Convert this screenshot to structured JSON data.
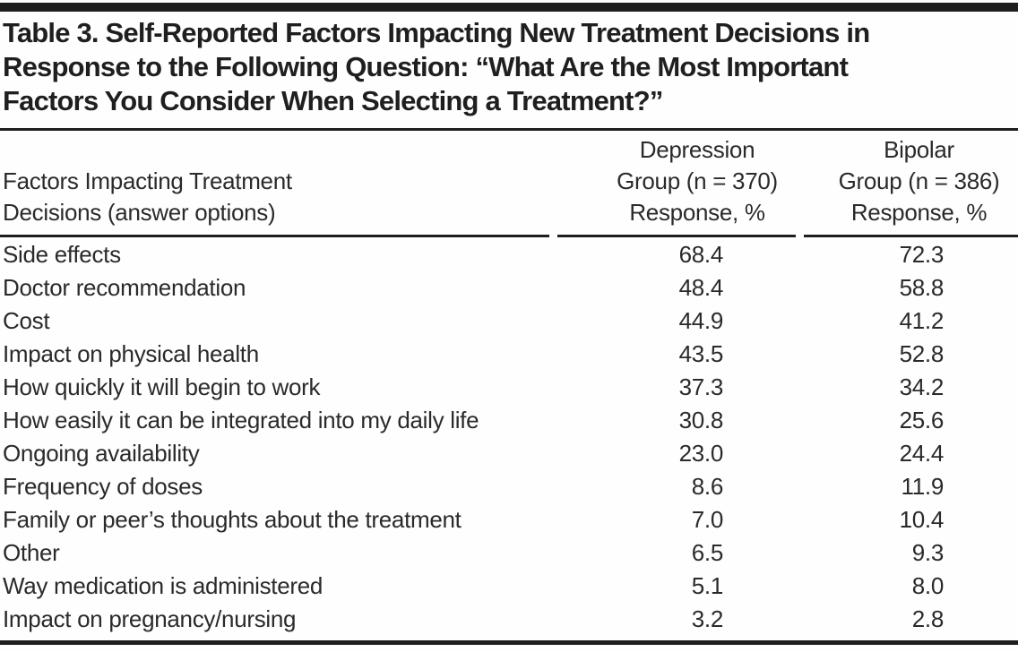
{
  "page": {
    "title_lines": [
      "Table 3. Self-Reported Factors Impacting New Treatment Decisions in",
      "Response to the Following Question: “What Are the Most Important",
      "Factors You Consider When Selecting a Treatment?”"
    ]
  },
  "table": {
    "header": {
      "factor_line1": "Factors Impacting Treatment",
      "factor_line2": "Decisions (answer options)",
      "dep_line1": "Depression",
      "dep_line2": "Group (n = 370)",
      "dep_line3": "Response, %",
      "bip_line1": "Bipolar",
      "bip_line2": "Group (n = 386)",
      "bip_line3": "Response, %"
    },
    "rows": [
      {
        "factor": "Side effects",
        "depression": "68.4",
        "bipolar": "72.3"
      },
      {
        "factor": "Doctor recommendation",
        "depression": "48.4",
        "bipolar": "58.8"
      },
      {
        "factor": "Cost",
        "depression": "44.9",
        "bipolar": "41.2"
      },
      {
        "factor": "Impact on physical health",
        "depression": "43.5",
        "bipolar": "52.8"
      },
      {
        "factor": "How quickly it will begin to work",
        "depression": "37.3",
        "bipolar": "34.2"
      },
      {
        "factor": "How easily it can be integrated into my daily life",
        "depression": "30.8",
        "bipolar": "25.6"
      },
      {
        "factor": "Ongoing availability",
        "depression": "23.0",
        "bipolar": "24.4"
      },
      {
        "factor": "Frequency of doses",
        "depression": "8.6",
        "bipolar": "11.9"
      },
      {
        "factor": "Family or peer’s thoughts about the treatment",
        "depression": "7.0",
        "bipolar": "10.4"
      },
      {
        "factor": "Other",
        "depression": "6.5",
        "bipolar": "9.3"
      },
      {
        "factor": "Way medication is administered",
        "depression": "5.1",
        "bipolar": "8.0"
      },
      {
        "factor": "Impact on pregnancy/nursing",
        "depression": "3.2",
        "bipolar": "2.8"
      }
    ],
    "colors": {
      "rule": "#1e1e1e",
      "text": "#2a2a2a",
      "background": "#fefefe"
    }
  }
}
